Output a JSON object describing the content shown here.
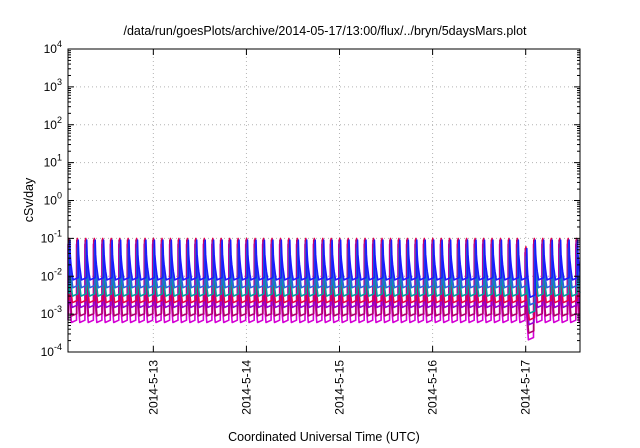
{
  "chart_data": {
    "type": "line",
    "title": "/data/run/goesPlots/archive/2014-05-17/13:00/flux/../bryn/5daysMars.plot",
    "xlabel": "Coordinated Universal Time (UTC)",
    "ylabel": "cSv/day",
    "y_scale": "log",
    "ylim": [
      0.0001,
      10000
    ],
    "yticks": [
      {
        "value": 0.0001,
        "base": "10",
        "exp": "-4"
      },
      {
        "value": 0.001,
        "base": "10",
        "exp": "-3"
      },
      {
        "value": 0.01,
        "base": "10",
        "exp": "-2"
      },
      {
        "value": 0.1,
        "base": "10",
        "exp": "-1"
      },
      {
        "value": 1,
        "base": "10",
        "exp": "0"
      },
      {
        "value": 10,
        "base": "10",
        "exp": "1"
      },
      {
        "value": 100,
        "base": "10",
        "exp": "2"
      },
      {
        "value": 1000,
        "base": "10",
        "exp": "3"
      },
      {
        "value": 10000,
        "base": "10",
        "exp": "4"
      }
    ],
    "xlim": [
      "2014-05-12T02:00",
      "2014-05-17T14:00"
    ],
    "xticks": [
      {
        "date": "2014-05-13",
        "label": "2014-5-13"
      },
      {
        "date": "2014-05-14",
        "label": "2014-5-14"
      },
      {
        "date": "2014-05-15",
        "label": "2014-5-15"
      },
      {
        "date": "2014-05-16",
        "label": "2014-5-16"
      },
      {
        "date": "2014-05-17",
        "label": "2014-5-17"
      }
    ],
    "grid": true,
    "sawtooth_cycles_per_day": 11,
    "dropout": {
      "start": "2014-05-16T22:30",
      "end": "2014-05-17T01:00"
    },
    "series": [
      {
        "color": "#d400d4",
        "peak": 0.07,
        "trough": 0.0006
      },
      {
        "color": "#b0006a",
        "peak": 0.09,
        "trough": 0.0009
      },
      {
        "color": "#9400d3",
        "peak": 0.08,
        "trough": 0.0015
      },
      {
        "color": "#e4004a",
        "peak": 0.1,
        "trough": 0.002
      },
      {
        "color": "#00a0a0",
        "peak": 0.055,
        "trough": 0.003
      },
      {
        "color": "#2b60de",
        "peak": 0.08,
        "trough": 0.005
      },
      {
        "color": "#1a1aff",
        "peak": 0.09,
        "trough": 0.008
      }
    ]
  }
}
